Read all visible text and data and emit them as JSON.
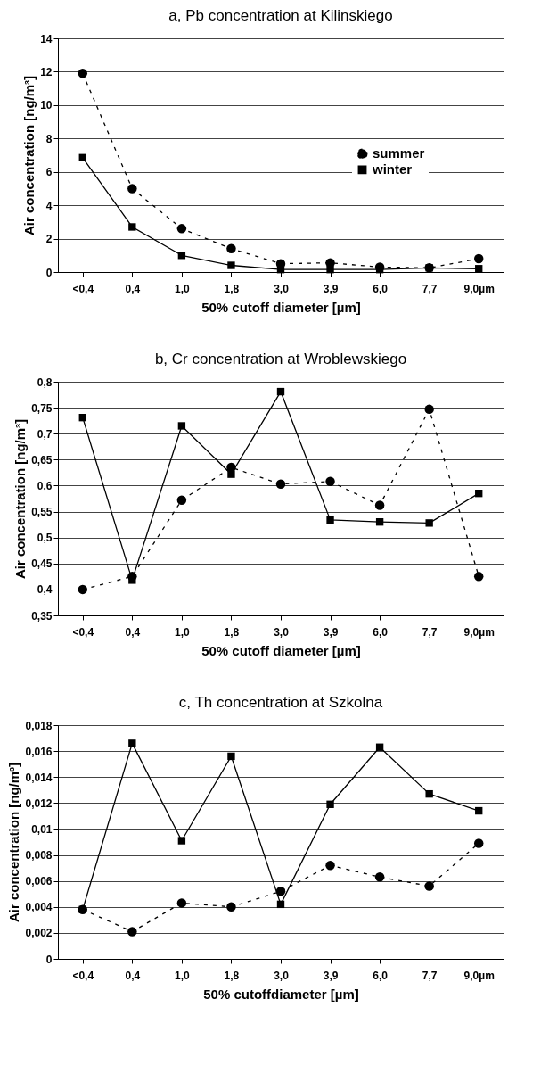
{
  "chart_data": [
    {
      "type": "line",
      "title": "a, Pb concentration at Kilinskiego",
      "xlabel": "50% cutoff  diameter [µm]",
      "ylabel": "Air concentration [ng/m³]",
      "categories": [
        "<0,4",
        "0,4",
        "1,0",
        "1,8",
        "3,0",
        "3,9",
        "6,0",
        "7,7",
        "9,0µm"
      ],
      "series": [
        {
          "name": "summer",
          "color": "#000000",
          "marker": "circle",
          "line_style": "dashed",
          "values": [
            11.9,
            5.0,
            2.6,
            1.4,
            0.5,
            0.55,
            0.3,
            0.25,
            0.8
          ]
        },
        {
          "name": "winter",
          "color": "#000000",
          "marker": "square",
          "line_style": "solid",
          "values": [
            6.85,
            2.7,
            1.0,
            0.4,
            0.15,
            0.15,
            0.15,
            0.25,
            0.2
          ]
        }
      ],
      "ylim": [
        0,
        14
      ],
      "yticks": [
        0,
        2,
        4,
        6,
        8,
        10,
        12,
        14
      ],
      "grid": "y",
      "legend": "right"
    },
    {
      "type": "line",
      "title": "b, Cr concentration at Wroblewskiego",
      "xlabel": "50% cutoff diameter [µm]",
      "ylabel": "Air concentration [ng/m³]",
      "categories": [
        "<0,4",
        "0,4",
        "1,0",
        "1,8",
        "3,0",
        "3,9",
        "6,0",
        "7,7",
        "9,0µm"
      ],
      "series": [
        {
          "name": "summer",
          "color": "#000000",
          "marker": "circle",
          "line_style": "dashed",
          "values": [
            0.4,
            0.425,
            0.572,
            0.635,
            0.603,
            0.608,
            0.562,
            0.747,
            0.425
          ]
        },
        {
          "name": "winter",
          "color": "#000000",
          "marker": "square",
          "line_style": "solid",
          "values": [
            0.731,
            0.418,
            0.715,
            0.622,
            0.781,
            0.534,
            0.53,
            0.528,
            0.585
          ]
        }
      ],
      "ylim": [
        0.35,
        0.8
      ],
      "yticks": [
        {
          "value": 0.35,
          "label": "0,35"
        },
        {
          "value": 0.4,
          "label": "0,4"
        },
        {
          "value": 0.45,
          "label": "0,45"
        },
        {
          "value": 0.5,
          "label": "0,5"
        },
        {
          "value": 0.55,
          "label": "0,55"
        },
        {
          "value": 0.6,
          "label": "0,6"
        },
        {
          "value": 0.65,
          "label": "0,65"
        },
        {
          "value": 0.7,
          "label": "0,7"
        },
        {
          "value": 0.75,
          "label": "0,75"
        },
        {
          "value": 0.8,
          "label": "0,8"
        }
      ],
      "grid": "y",
      "legend": "bottom right"
    },
    {
      "type": "line",
      "title": "c, Th concentration at Szkolna",
      "xlabel": "50% cutoffdiameter [µm]",
      "ylabel": "Air concentration [ng/m³]",
      "categories": [
        "<0,4",
        "0,4",
        "1,0",
        "1,8",
        "3,0",
        "3,9",
        "6,0",
        "7,7",
        "9,0µm"
      ],
      "series": [
        {
          "name": "summer",
          "color": "#000000",
          "marker": "circle",
          "line_style": "dashed",
          "values": [
            0.0038,
            0.0021,
            0.0043,
            0.004,
            0.0052,
            0.0072,
            0.0063,
            0.0056,
            0.0089
          ]
        },
        {
          "name": "winter",
          "color": "#000000",
          "marker": "square",
          "line_style": "solid",
          "values": [
            0.0038,
            0.0166,
            0.0091,
            0.0156,
            0.0042,
            0.0119,
            0.0163,
            0.0127,
            0.0114
          ]
        }
      ],
      "ylim": [
        0,
        0.018
      ],
      "yticks": [
        0,
        {
          "value": 0.002,
          "label": "0,002"
        },
        {
          "value": 0.004,
          "label": "0,004"
        },
        {
          "value": 0.006,
          "label": "0,006"
        },
        {
          "value": 0.008,
          "label": "0,008"
        },
        {
          "value": 0.01,
          "label": "0,01"
        },
        {
          "value": 0.012,
          "label": "0,012"
        },
        {
          "value": 0.014,
          "label": "0,014"
        },
        {
          "value": 0.016,
          "label": "0,016"
        },
        {
          "value": 0.018,
          "label": "0,018"
        }
      ],
      "grid": "y",
      "legend": "right"
    }
  ]
}
